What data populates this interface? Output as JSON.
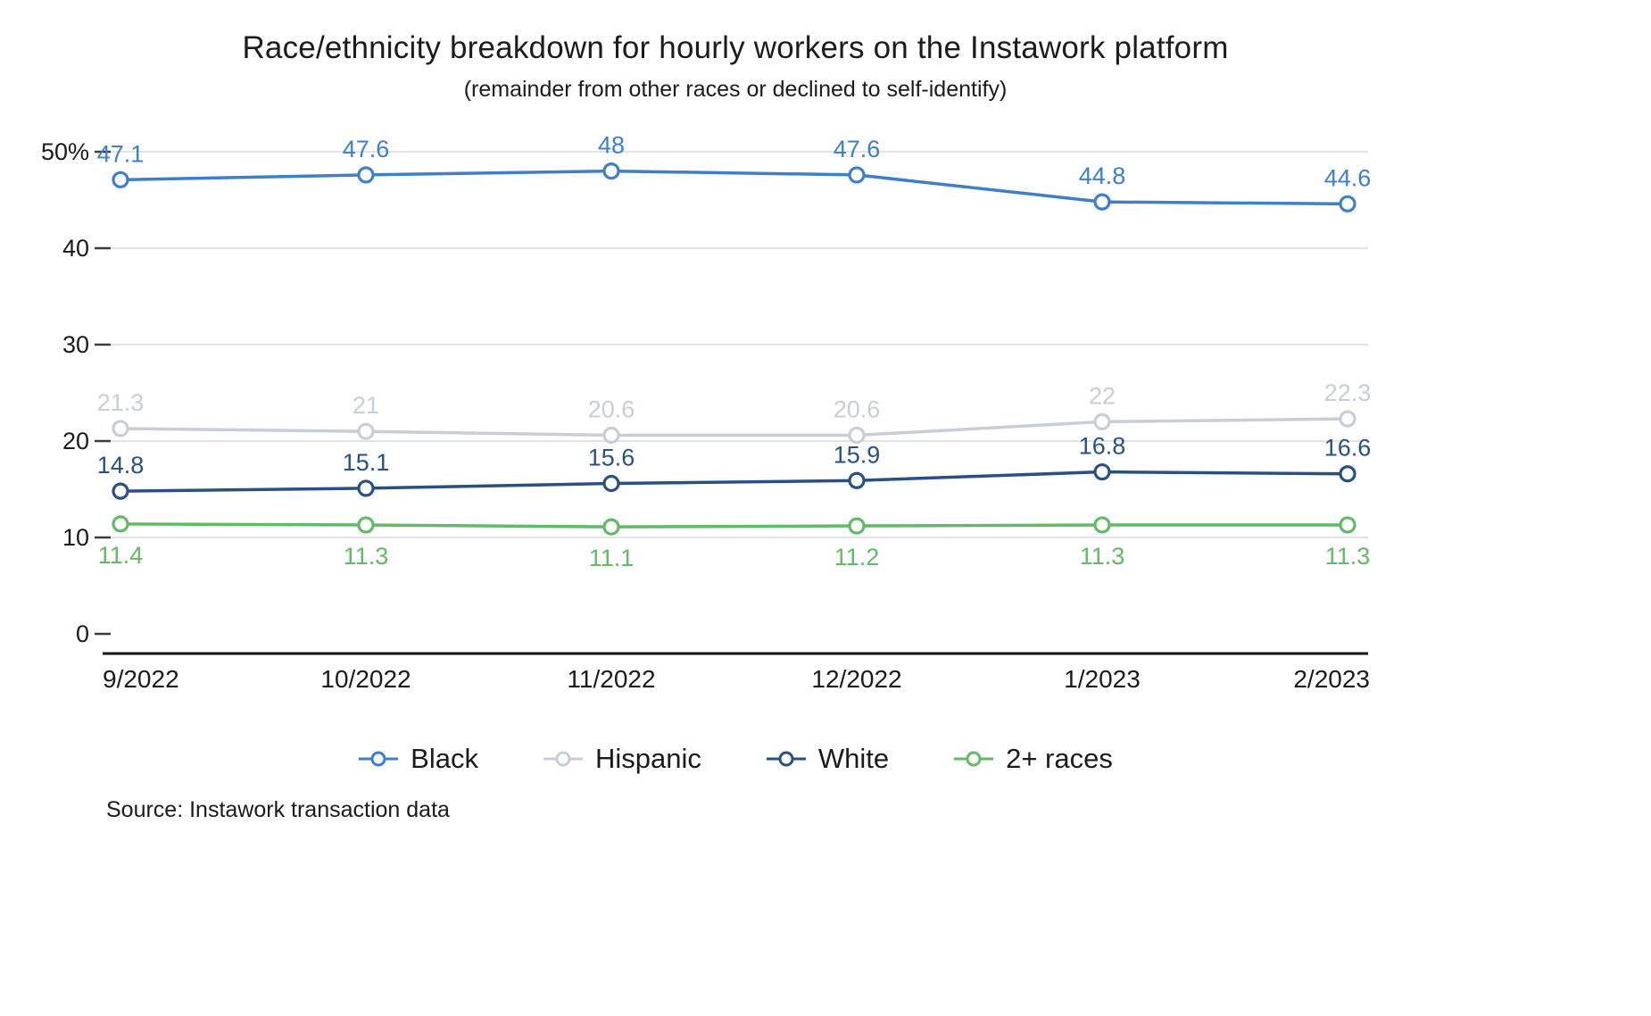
{
  "title": "Race/ethnicity breakdown for hourly workers on the Instawork platform",
  "subtitle": "(remainder from other races or declined to self-identify)",
  "source": "Source: Instawork transaction data",
  "chart_data": {
    "type": "line",
    "x": [
      "9/2022",
      "10/2022",
      "11/2022",
      "12/2022",
      "1/2023",
      "2/2023"
    ],
    "series": [
      {
        "name": "Black",
        "color": "#3f7ec8",
        "label_position": "above",
        "values": [
          47.1,
          47.6,
          48,
          47.6,
          44.8,
          44.6
        ]
      },
      {
        "name": "Hispanic",
        "color": "#c9ced6",
        "label_position": "above",
        "values": [
          21.3,
          21,
          20.6,
          20.6,
          22,
          22.3
        ]
      },
      {
        "name": "White",
        "color": "#2a5083",
        "label_position": "above",
        "values": [
          14.8,
          15.1,
          15.6,
          15.9,
          16.8,
          16.6
        ]
      },
      {
        "name": "2+ races",
        "color": "#62b966",
        "label_position": "below",
        "values": [
          11.4,
          11.3,
          11.1,
          11.2,
          11.3,
          11.3
        ]
      }
    ],
    "y_ticks": [
      0,
      10,
      20,
      30,
      40,
      50
    ],
    "y_tick_labels": [
      "0",
      "10",
      "20",
      "30",
      "40",
      "50%"
    ],
    "ylim": [
      0,
      50
    ],
    "grid": true,
    "legend_position": "bottom",
    "grid_color": "#dadada",
    "axis_color": "#151515"
  }
}
